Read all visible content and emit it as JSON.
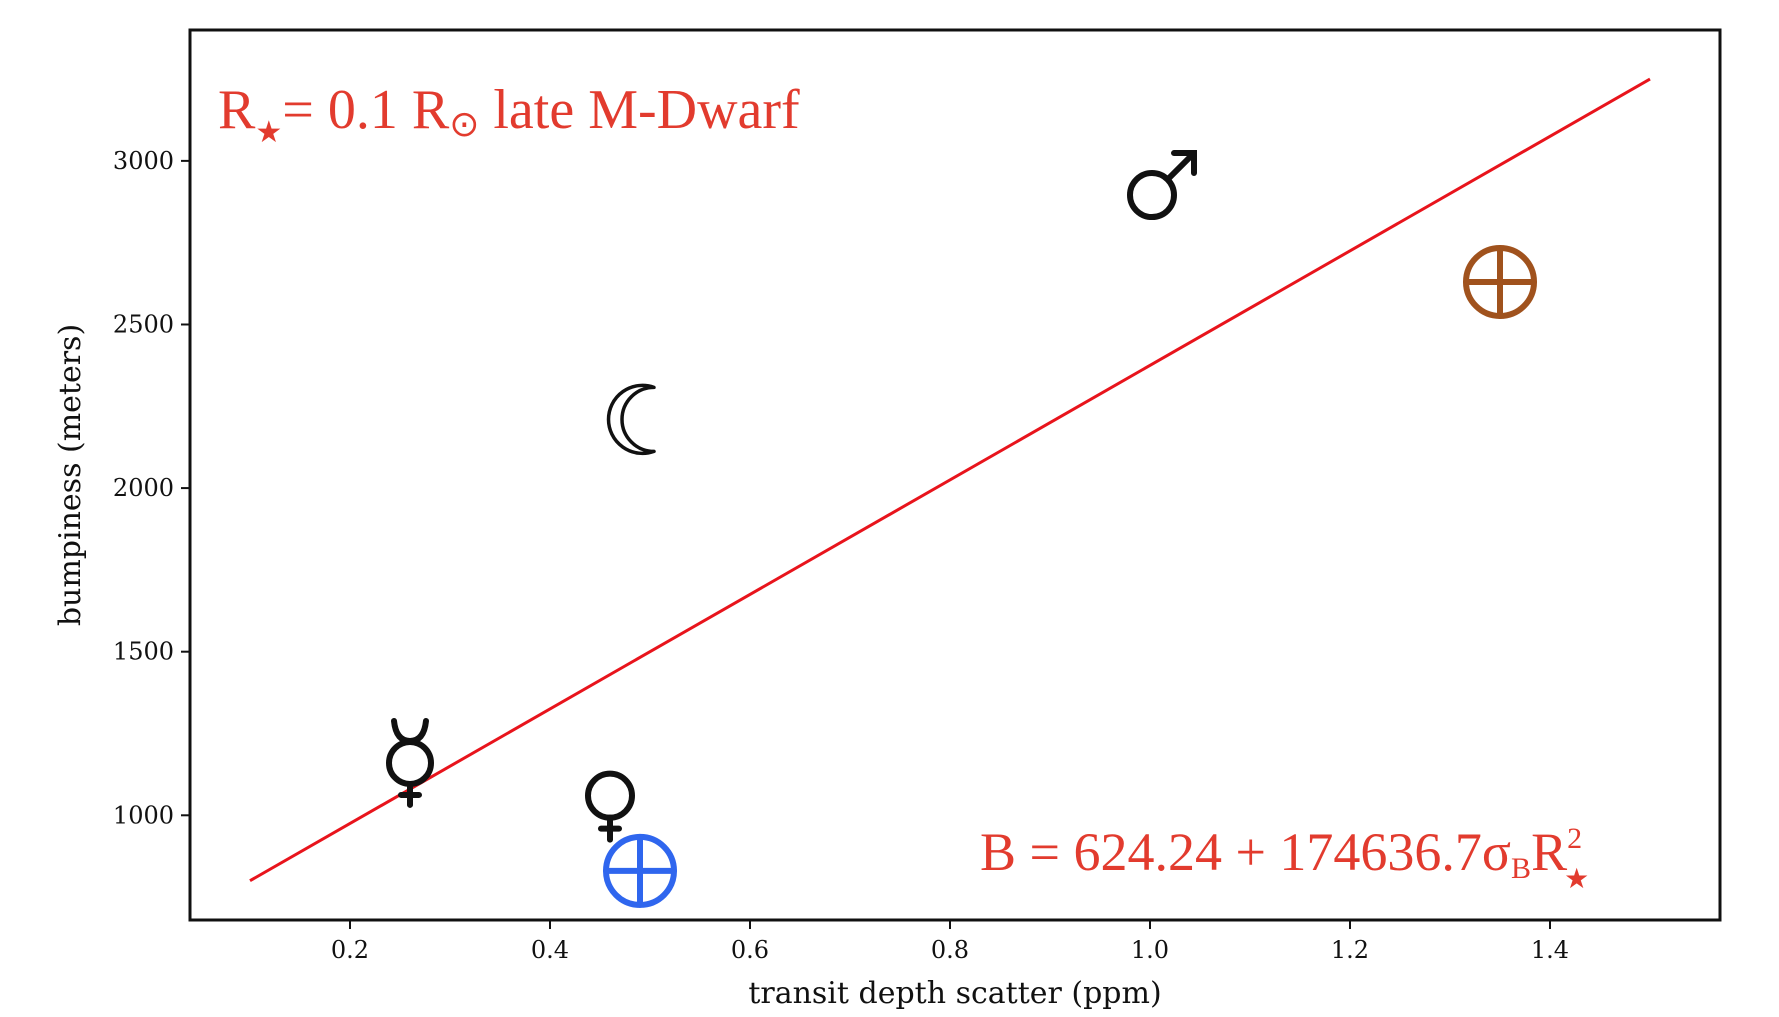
{
  "chart_data": {
    "type": "scatter",
    "title": "",
    "xlabel": "transit depth scatter (ppm)",
    "ylabel": "bumpiness (meters)",
    "xlim": [
      0.04,
      1.57
    ],
    "ylim": [
      680,
      3400
    ],
    "x_ticks": [
      "0.2",
      "0.4",
      "0.6",
      "0.8",
      "1.0",
      "1.2",
      "1.4"
    ],
    "y_ticks": [
      "1000",
      "1500",
      "2000",
      "2500",
      "3000"
    ],
    "grid": false,
    "points": [
      {
        "symbol": "mercury-icon",
        "x": 0.26,
        "y": 1160,
        "color": "#111111"
      },
      {
        "symbol": "venus-icon",
        "x": 0.46,
        "y": 1060,
        "color": "#111111"
      },
      {
        "symbol": "earth-icon",
        "x": 0.49,
        "y": 830,
        "color": "#2f66ee"
      },
      {
        "symbol": "moon-icon",
        "x": 0.49,
        "y": 2210,
        "color": "#111111"
      },
      {
        "symbol": "mars-icon",
        "x": 1.01,
        "y": 2920,
        "color": "#111111"
      },
      {
        "symbol": "earth-icon",
        "x": 1.35,
        "y": 2630,
        "color": "#a0521d"
      }
    ],
    "fit_line": {
      "x": [
        0.1,
        1.5
      ],
      "y": [
        800,
        3250
      ],
      "color": "#e8141c"
    },
    "annotations": {
      "top_left": {
        "r": "R",
        "star": "★",
        "mid": "= 0.1 R",
        "sun": "⊙",
        "rest": " late M-Dwarf"
      },
      "equation": {
        "main": "B = 624.24 + 174636.7σ",
        "sub_b": "B",
        "r": "R",
        "sup": "2",
        "star": "★"
      }
    },
    "annotation_color": "#e23b2e"
  }
}
